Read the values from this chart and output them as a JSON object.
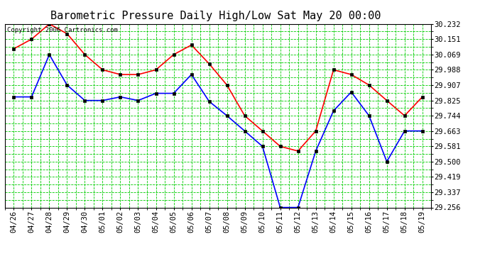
{
  "title": "Barometric Pressure Daily High/Low Sat May 20 00:00",
  "copyright": "Copyright 2006 Cartronics.com",
  "background_color": "#ffffff",
  "plot_bg_color": "#ffffff",
  "grid_color": "#00cc00",
  "dates": [
    "04/26",
    "04/27",
    "04/28",
    "04/29",
    "04/30",
    "05/01",
    "05/02",
    "05/03",
    "05/04",
    "05/05",
    "05/06",
    "05/07",
    "05/08",
    "05/09",
    "05/10",
    "05/11",
    "05/12",
    "05/13",
    "05/14",
    "05/15",
    "05/16",
    "05/17",
    "05/18",
    "05/19"
  ],
  "high_values": [
    30.1,
    30.151,
    30.232,
    30.18,
    30.069,
    29.988,
    29.963,
    29.963,
    29.988,
    30.069,
    30.12,
    30.02,
    29.907,
    29.744,
    29.663,
    29.581,
    29.556,
    29.663,
    29.988,
    29.963,
    29.907,
    29.825,
    29.744,
    29.844
  ],
  "low_values": [
    29.844,
    29.844,
    30.069,
    29.907,
    29.825,
    29.825,
    29.844,
    29.825,
    29.863,
    29.863,
    29.963,
    29.82,
    29.744,
    29.663,
    29.581,
    29.256,
    29.256,
    29.556,
    29.77,
    29.87,
    29.744,
    29.5,
    29.663,
    29.663
  ],
  "high_color": "#ff0000",
  "low_color": "#0000ff",
  "marker_color": "#000000",
  "ylim": [
    29.256,
    30.232
  ],
  "yticks": [
    29.256,
    29.337,
    29.419,
    29.5,
    29.581,
    29.663,
    29.744,
    29.825,
    29.907,
    29.988,
    30.069,
    30.151,
    30.232
  ],
  "title_fontsize": 11,
  "tick_fontsize": 7.5,
  "copyright_fontsize": 6.5
}
